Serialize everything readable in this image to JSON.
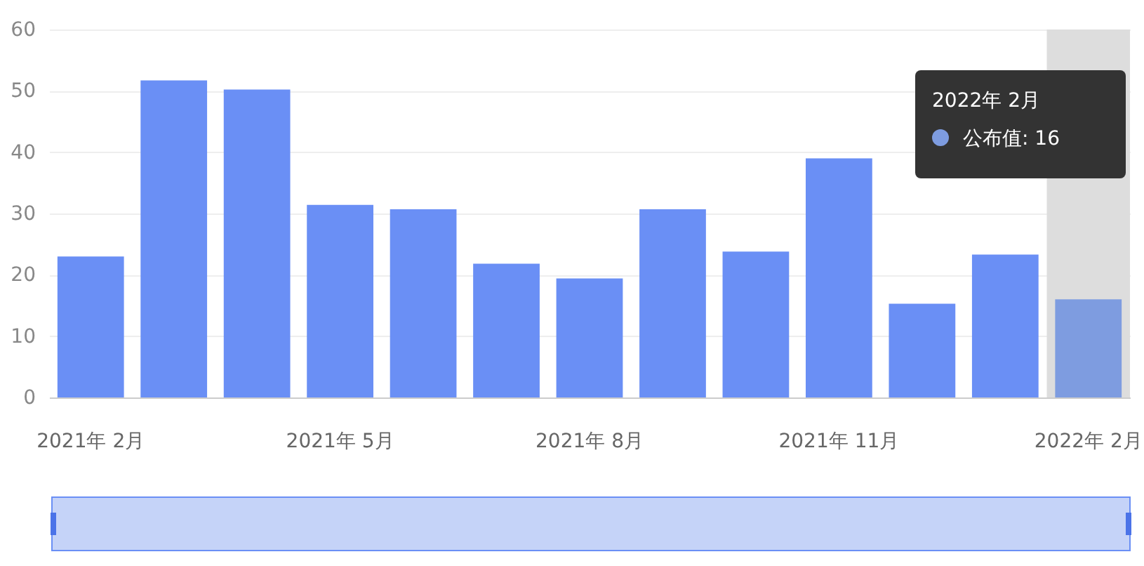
{
  "chart_data": {
    "type": "bar",
    "categories": [
      "2021年 2月",
      null,
      null,
      "2021年 5月",
      null,
      null,
      "2021年 8月",
      null,
      null,
      "2021年 11月",
      null,
      null,
      "2022年 2月"
    ],
    "values": [
      23,
      51.7,
      50.2,
      31.4,
      30.7,
      21.8,
      19.4,
      30.7,
      23.8,
      39,
      15.3,
      23.3,
      16
    ],
    "colors": [
      "#6a8ff5",
      "#6a8ff5",
      "#6a8ff5",
      "#6a8ff5",
      "#6a8ff5",
      "#6a8ff5",
      "#6a8ff5",
      "#6a8ff5",
      "#6a8ff5",
      "#6a8ff5",
      "#6a8ff5",
      "#6a8ff5",
      "#7e9ce0"
    ],
    "ylim": [
      0,
      60
    ],
    "yticks": [
      0,
      10,
      20,
      30,
      40,
      50,
      60
    ],
    "grid": "y",
    "bands": [
      {
        "axis": "x",
        "from": "2022年 2月",
        "to": "2022年 2月",
        "color": "#dddddd"
      }
    ],
    "annotations": [
      "2022年 2月",
      "公布值: 16"
    ]
  }
}
